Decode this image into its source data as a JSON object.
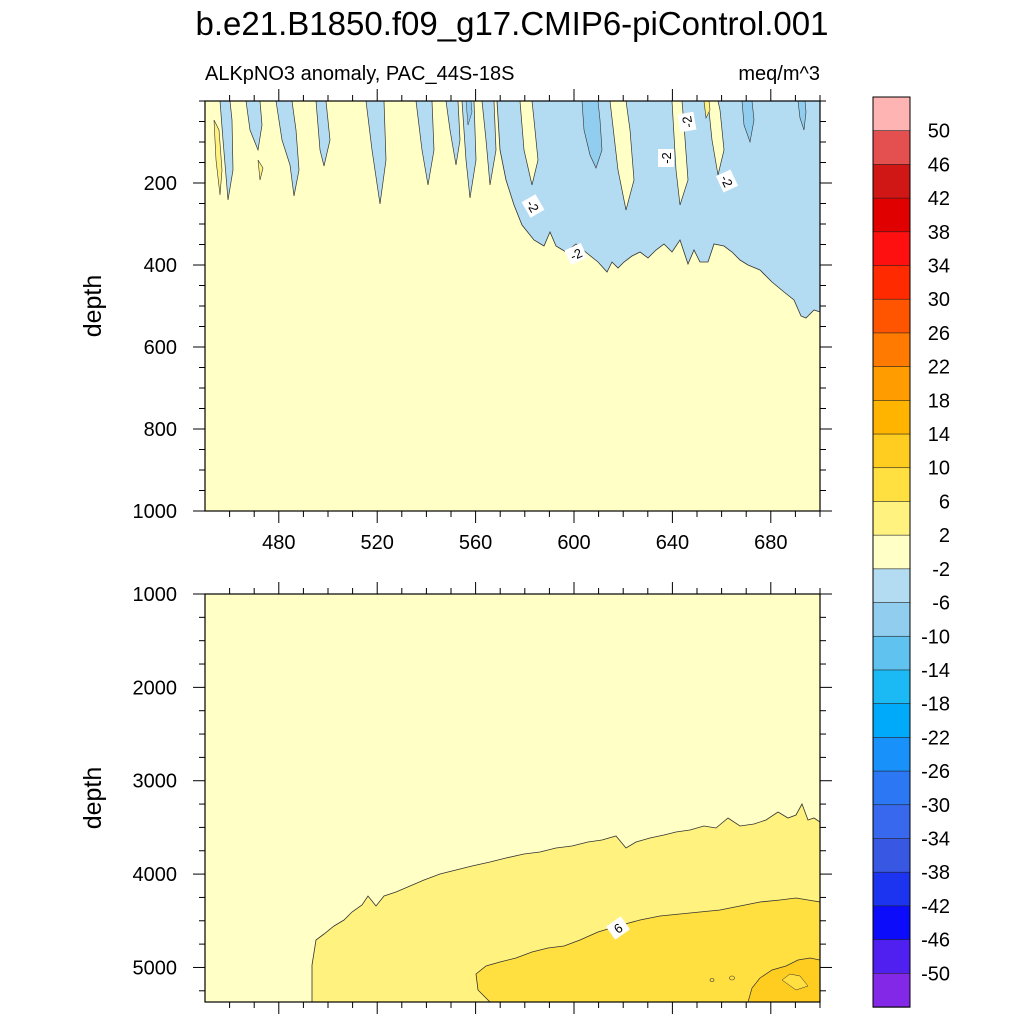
{
  "chart_data": {
    "type": "contour",
    "title": "b.e21.B1850.f09_g17.CMIP6-piControl.001",
    "variable": "ALKpNO3 anomaly, PAC_44S-18S",
    "units": "meq/m^3",
    "colorbar": {
      "labels": [
        "50",
        "46",
        "42",
        "38",
        "34",
        "30",
        "26",
        "22",
        "18",
        "14",
        "10",
        "6",
        "2",
        "-2",
        "-6",
        "-10",
        "-14",
        "-18",
        "-22",
        "-26",
        "-30",
        "-34",
        "-38",
        "-42",
        "-46",
        "-50"
      ],
      "colors": [
        "#ffb4b4",
        "#e45050",
        "#d11616",
        "#e00000",
        "#ff1010",
        "#ff2a00",
        "#ff5500",
        "#ff7a00",
        "#ff9d00",
        "#ffb400",
        "#ffcc20",
        "#ffe040",
        "#fff27e",
        "#ffffc6",
        "#b3dcf2",
        "#90cdef",
        "#5fc2ef",
        "#1cbaf5",
        "#00aafa",
        "#1891fb",
        "#2b77f4",
        "#3768ed",
        "#3858e4",
        "#1c34ef",
        "#0c0cfa",
        "#5020f0",
        "#8428e8"
      ]
    },
    "panels": [
      {
        "name": "upper",
        "xlabel": "",
        "ylabel": "depth",
        "xlim": [
          450,
          700
        ],
        "ylim": [
          1000,
          0
        ],
        "xticks": [
          "480",
          "520",
          "560",
          "600",
          "640",
          "680"
        ],
        "yticks": [
          "200",
          "400",
          "600",
          "800",
          "1000"
        ],
        "contour_labels": [
          "-2",
          "-2",
          "-2",
          "-2",
          "-2"
        ]
      },
      {
        "name": "lower",
        "xlabel": "",
        "ylabel": "depth",
        "xlim": [
          450,
          700
        ],
        "ylim": [
          5370,
          1000
        ],
        "xticks": [],
        "yticks": [
          "1000",
          "2000",
          "3000",
          "4000",
          "5000"
        ],
        "contour_labels": [
          "6"
        ]
      }
    ]
  }
}
